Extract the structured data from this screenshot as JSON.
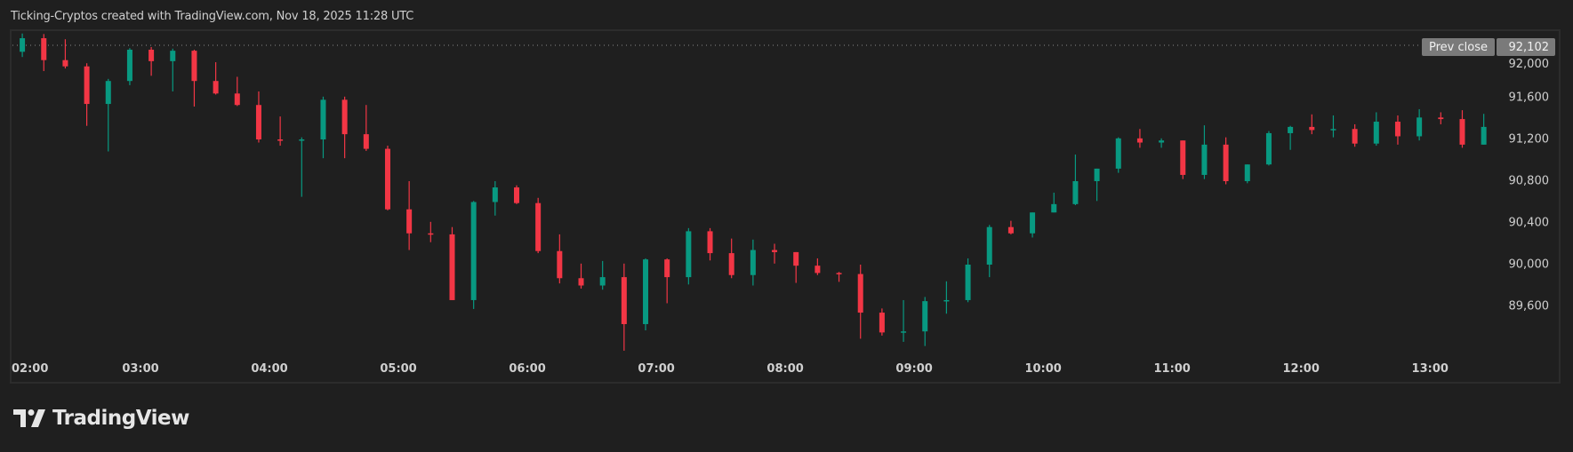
{
  "header": {
    "title": "Ticking-Cryptos created with TradingView.com, Nov 18, 2025 11:28 UTC"
  },
  "prev_close": {
    "label": "Prev close",
    "value": "92,102"
  },
  "branding": {
    "name": "TradingView",
    "icon": "tradingview-logo-icon"
  },
  "colors": {
    "up": "#089981",
    "down": "#f23645",
    "background": "#1f1f1f",
    "grid_border": "#2c2c2c"
  },
  "chart_data": {
    "type": "candlestick",
    "title": "",
    "interval_minutes": 10,
    "xlabel": "",
    "ylabel": "",
    "ylim": [
      89150,
      92300
    ],
    "grid": false,
    "prev_close": 92102,
    "x_ticks": [
      "02:00",
      "03:00",
      "04:00",
      "05:00",
      "06:00",
      "07:00",
      "08:00",
      "09:00",
      "10:00",
      "11:00",
      "12:00",
      "13:00"
    ],
    "y_ticks": [
      "92,000",
      "91,600",
      "91,200",
      "90,800",
      "90,400",
      "90,000",
      "89,600"
    ],
    "y_tick_values": [
      92000,
      91600,
      91200,
      90800,
      90400,
      90000,
      89600
    ],
    "times": [
      "02:00",
      "02:10",
      "02:20",
      "02:30",
      "02:40",
      "02:50",
      "03:00",
      "03:10",
      "03:20",
      "03:30",
      "03:40",
      "03:50",
      "04:00",
      "04:10",
      "04:20",
      "04:30",
      "04:40",
      "04:50",
      "05:00",
      "05:10",
      "05:20",
      "05:30",
      "05:40",
      "05:50",
      "06:00",
      "06:10",
      "06:20",
      "06:30",
      "06:40",
      "06:50",
      "07:00",
      "07:10",
      "07:20",
      "07:30",
      "07:40",
      "07:50",
      "08:00",
      "08:10",
      "08:20",
      "08:30",
      "08:40",
      "08:50",
      "09:00",
      "09:10",
      "09:20",
      "09:30",
      "09:40",
      "09:50",
      "10:00",
      "10:10",
      "10:20",
      "10:30",
      "10:40",
      "10:50",
      "11:00",
      "11:10",
      "11:20",
      "11:30",
      "11:40",
      "11:50",
      "12:00",
      "12:10",
      "12:20",
      "12:30",
      "12:40",
      "12:50",
      "13:00",
      "13:10",
      "13:20"
    ],
    "ohlc": [
      [
        92040,
        92215,
        91990,
        92170
      ],
      [
        92170,
        92210,
        91855,
        91960
      ],
      [
        91960,
        92160,
        91880,
        91900
      ],
      [
        91900,
        91930,
        91330,
        91540
      ],
      [
        91540,
        91780,
        91085,
        91760
      ],
      [
        91760,
        92075,
        91720,
        92060
      ],
      [
        92060,
        92085,
        91810,
        91950
      ],
      [
        91950,
        92070,
        91660,
        92050
      ],
      [
        92050,
        92060,
        91515,
        91760
      ],
      [
        91760,
        91940,
        91630,
        91640
      ],
      [
        91640,
        91800,
        91520,
        91530
      ],
      [
        91530,
        91660,
        91170,
        91200
      ],
      [
        91200,
        91420,
        91140,
        91190
      ],
      [
        91190,
        91220,
        90650,
        91200
      ],
      [
        91200,
        91610,
        91020,
        91580
      ],
      [
        91580,
        91610,
        91020,
        91250
      ],
      [
        91250,
        91530,
        91090,
        91110
      ],
      [
        91110,
        91140,
        90520,
        90530
      ],
      [
        90530,
        90800,
        90140,
        90300
      ],
      [
        90300,
        90410,
        90215,
        90290
      ],
      [
        90290,
        90360,
        89660,
        89660
      ],
      [
        89660,
        90610,
        89575,
        90600
      ],
      [
        90600,
        90800,
        90470,
        90740
      ],
      [
        90740,
        90760,
        90580,
        90590
      ],
      [
        90590,
        90640,
        90110,
        90130
      ],
      [
        90130,
        90290,
        89820,
        89870
      ],
      [
        89870,
        90010,
        89770,
        89800
      ],
      [
        89800,
        90035,
        89760,
        89880
      ],
      [
        89880,
        90010,
        89175,
        89430
      ],
      [
        89430,
        90060,
        89370,
        90050
      ],
      [
        90050,
        90060,
        89630,
        89880
      ],
      [
        89880,
        90350,
        89810,
        90320
      ],
      [
        90320,
        90350,
        90040,
        90110
      ],
      [
        90110,
        90250,
        89870,
        89900
      ],
      [
        89900,
        90240,
        89800,
        90140
      ],
      [
        90140,
        90200,
        90010,
        90120
      ],
      [
        90120,
        90120,
        89825,
        89990
      ],
      [
        89990,
        90060,
        89900,
        89920
      ],
      [
        89920,
        89930,
        89835,
        89910
      ],
      [
        89910,
        90000,
        89290,
        89540
      ],
      [
        89540,
        89580,
        89320,
        89350
      ],
      [
        89350,
        89660,
        89260,
        89360
      ],
      [
        89360,
        89690,
        89220,
        89650
      ],
      [
        89650,
        89840,
        89530,
        89660
      ],
      [
        89660,
        90060,
        89640,
        90000
      ],
      [
        90000,
        90380,
        89880,
        90360
      ],
      [
        90360,
        90420,
        90290,
        90300
      ],
      [
        90300,
        90500,
        90260,
        90500
      ],
      [
        90500,
        90690,
        90500,
        90580
      ],
      [
        90580,
        91055,
        90570,
        90800
      ],
      [
        90800,
        90920,
        90610,
        90920
      ],
      [
        90920,
        91220,
        90880,
        91210
      ],
      [
        91210,
        91300,
        91120,
        91170
      ],
      [
        91170,
        91210,
        91120,
        91190
      ],
      [
        91190,
        91190,
        90820,
        90860
      ],
      [
        90860,
        91335,
        90820,
        91150
      ],
      [
        91150,
        91220,
        90770,
        90800
      ],
      [
        90800,
        90960,
        90780,
        90960
      ],
      [
        90960,
        91280,
        90950,
        91260
      ],
      [
        91260,
        91330,
        91100,
        91320
      ],
      [
        91320,
        91440,
        91250,
        91290
      ],
      [
        91290,
        91430,
        91220,
        91300
      ],
      [
        91300,
        91345,
        91130,
        91160
      ],
      [
        91160,
        91460,
        91140,
        91370
      ],
      [
        91370,
        91430,
        91150,
        91230
      ],
      [
        91230,
        91490,
        91190,
        91410
      ],
      [
        91410,
        91460,
        91345,
        91395
      ],
      [
        91395,
        91480,
        91120,
        91150
      ],
      [
        91150,
        91445,
        91150,
        91320
      ]
    ]
  }
}
